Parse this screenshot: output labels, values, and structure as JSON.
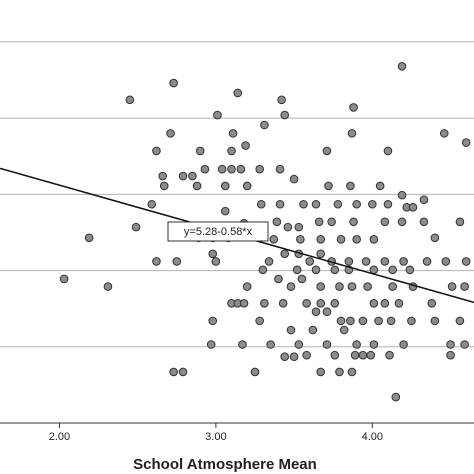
{
  "chart_data": {
    "type": "scatter",
    "x_label": "School Atmosphere Mean",
    "xlim": [
      1.62,
      4.65
    ],
    "ylim": [
      1,
      6.55
    ],
    "xticks": [
      {
        "value": 2,
        "label": "2.00"
      },
      {
        "value": 3,
        "label": "3.00"
      },
      {
        "value": 4,
        "label": "4.00"
      }
    ],
    "ygrid": [
      2,
      3,
      4,
      5,
      6
    ],
    "grid": true,
    "color": "#8c8c8c",
    "fit": {
      "intercept": 5.28,
      "slope": -0.58,
      "label": "y=5.28-0.58*x"
    },
    "x": [
      4.19,
      2.73,
      2.45,
      3.14,
      3.42,
      3.44,
      3.88,
      3.01,
      2.71,
      3.31,
      4.46,
      3.87,
      2.62,
      2.9,
      3.1,
      3.19,
      3.11,
      4.6,
      3.71,
      4.1,
      2.66,
      2.79,
      2.85,
      2.93,
      3.04,
      3.1,
      3.16,
      3.28,
      3.41,
      3.5,
      3.86,
      4.05,
      2.67,
      3.06,
      3.2,
      2.88,
      3.72,
      4.19,
      4.22,
      4.26,
      4.33,
      2.59,
      3.29,
      3.41,
      3.56,
      3.64,
      3.78,
      3.9,
      4.0,
      4.1,
      3.06,
      3.18,
      2.49,
      2.19,
      2.74,
      3.39,
      3.46,
      3.53,
      3.66,
      3.74,
      3.88,
      4.08,
      4.19,
      4.33,
      4.56,
      2.98,
      3.08,
      2.89,
      3.37,
      3.54,
      3.67,
      3.8,
      3.9,
      4.01,
      4.4,
      2.62,
      2.75,
      2.98,
      3.0,
      3.34,
      3.44,
      3.53,
      3.6,
      3.67,
      3.74,
      3.85,
      3.96,
      4.08,
      4.2,
      4.35,
      4.47,
      4.6,
      3.3,
      3.52,
      3.64,
      3.76,
      3.85,
      4.01,
      4.13,
      4.24,
      2.03,
      2.31,
      3.2,
      3.4,
      3.48,
      3.55,
      3.67,
      3.79,
      3.87,
      3.97,
      4.13,
      4.26,
      4.51,
      4.59,
      3.1,
      3.14,
      3.18,
      3.31,
      3.43,
      3.58,
      3.67,
      3.76,
      4.01,
      4.08,
      4.17,
      4.38,
      2.98,
      3.28,
      3.64,
      3.71,
      3.8,
      3.86,
      3.94,
      4.04,
      4.12,
      4.25,
      4.4,
      4.56,
      3.48,
      3.62,
      3.82,
      2.97,
      3.17,
      3.35,
      3.53,
      3.71,
      3.9,
      4.01,
      4.2,
      4.5,
      4.59,
      3.44,
      3.5,
      3.58,
      3.76,
      3.89,
      3.94,
      3.99,
      4.11,
      4.5,
      2.73,
      2.79,
      3.25,
      3.67,
      3.79,
      3.87,
      4.15
    ],
    "values": [
      5.68,
      5.46,
      5.24,
      5.33,
      5.24,
      5.04,
      5.14,
      5.04,
      4.8,
      4.91,
      4.8,
      4.8,
      4.57,
      4.57,
      4.57,
      4.64,
      4.8,
      4.68,
      4.57,
      4.57,
      4.24,
      4.24,
      4.24,
      4.33,
      4.33,
      4.33,
      4.33,
      4.33,
      4.33,
      4.2,
      4.11,
      4.11,
      4.11,
      4.11,
      4.11,
      4.11,
      4.11,
      3.99,
      3.83,
      3.83,
      3.93,
      3.87,
      3.87,
      3.87,
      3.87,
      3.87,
      3.87,
      3.87,
      3.87,
      3.87,
      3.78,
      3.62,
      3.57,
      3.43,
      3.57,
      3.64,
      3.57,
      3.57,
      3.64,
      3.64,
      3.64,
      3.64,
      3.64,
      3.64,
      3.64,
      3.43,
      3.43,
      3.43,
      3.41,
      3.41,
      3.41,
      3.41,
      3.41,
      3.41,
      3.43,
      3.12,
      3.12,
      3.22,
      3.12,
      3.12,
      3.22,
      3.22,
      3.12,
      3.22,
      3.12,
      3.12,
      3.12,
      3.12,
      3.12,
      3.12,
      3.12,
      3.12,
      3.01,
      3.01,
      3.01,
      3.01,
      3.01,
      3.01,
      3.01,
      3.01,
      2.89,
      2.79,
      2.79,
      2.89,
      2.79,
      2.89,
      2.79,
      2.79,
      2.79,
      2.79,
      2.79,
      2.79,
      2.79,
      2.79,
      2.57,
      2.57,
      2.57,
      2.57,
      2.57,
      2.57,
      2.57,
      2.57,
      2.57,
      2.57,
      2.57,
      2.57,
      2.34,
      2.34,
      2.46,
      2.46,
      2.34,
      2.34,
      2.34,
      2.34,
      2.34,
      2.34,
      2.34,
      2.34,
      2.22,
      2.22,
      2.22,
      2.03,
      2.03,
      2.03,
      2.03,
      2.03,
      2.03,
      2.03,
      2.03,
      2.03,
      2.03,
      1.87,
      1.87,
      1.89,
      1.89,
      1.89,
      1.89,
      1.89,
      1.89,
      1.89,
      1.67,
      1.67,
      1.67,
      1.67,
      1.67,
      1.67,
      1.34
    ]
  }
}
